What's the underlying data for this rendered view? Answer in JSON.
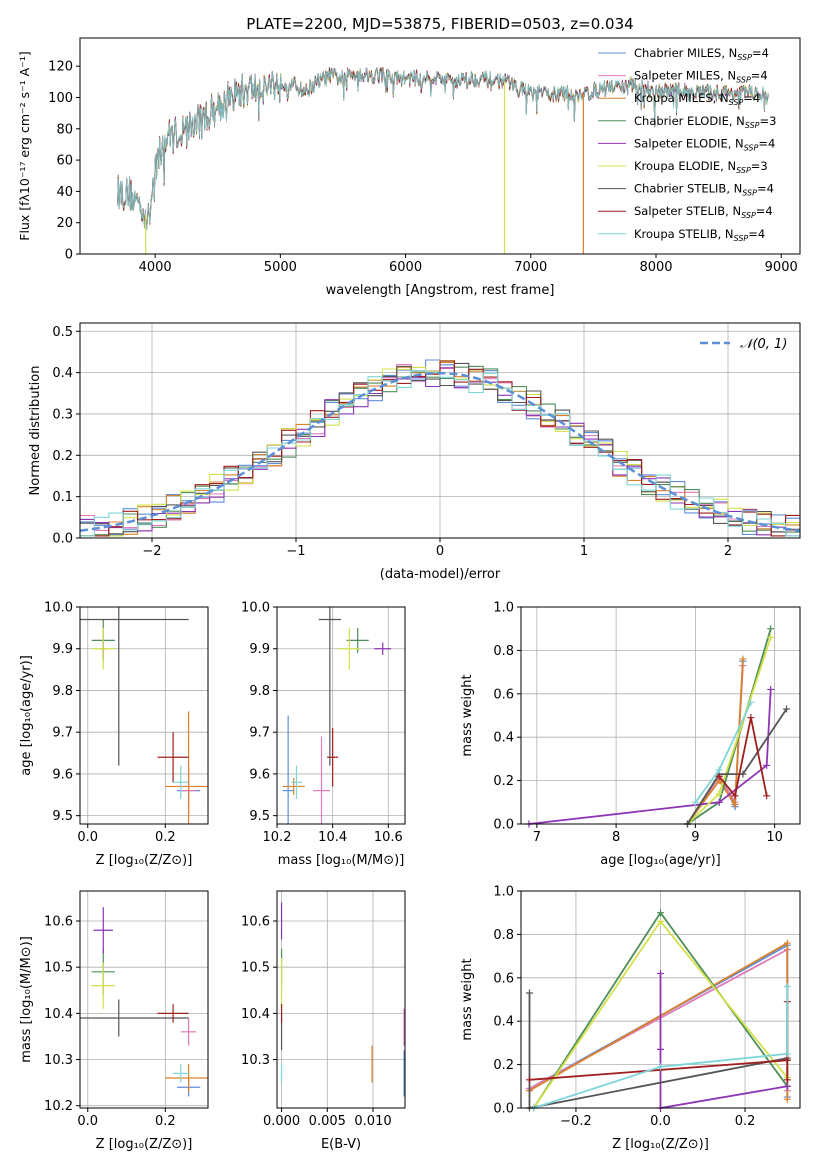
{
  "title": "PLATE=2200, MJD=53875, FIBERID=0503, z=0.034",
  "colors": {
    "chabrier_miles": "#5f8fd9",
    "salpeter_miles": "#e07ab8",
    "kroupa_miles": "#d9822b",
    "chabrier_elodie": "#4f8f5a",
    "salpeter_elodie": "#8e35b5",
    "kroupa_elodie": "#d4e04a",
    "chabrier_stelib": "#555555",
    "salpeter_stelib": "#a01e1e",
    "kroupa_stelib": "#7fd6d9",
    "gaussian": "#5b8fd6"
  },
  "chart_data": [
    {
      "id": "spectrum",
      "type": "line",
      "xlabel": "wavelength [Angstrom, rest frame]",
      "ylabel": "Flux [fλ10⁻¹⁷ erg cm⁻² s⁻¹ A⁻¹]",
      "xlim": [
        3400,
        9150
      ],
      "ylim": [
        0,
        138
      ],
      "xticks": [
        "4000",
        "5000",
        "6000",
        "7000",
        "8000",
        "9000"
      ],
      "yticks": [
        "0",
        "20",
        "40",
        "60",
        "80",
        "100",
        "120"
      ],
      "legend_position": "top-right",
      "legend": [
        {
          "label": "Chabrier MILES, N",
          "sub": "SSP",
          "tail": "=4",
          "color_key": "chabrier_miles"
        },
        {
          "label": "Salpeter MILES, N",
          "sub": "SSP",
          "tail": "=4",
          "color_key": "salpeter_miles"
        },
        {
          "label": "Kroupa MILES, N",
          "sub": "SSP",
          "tail": "=4",
          "color_key": "kroupa_miles"
        },
        {
          "label": "Chabrier ELODIE, N",
          "sub": "SSP",
          "tail": "=3",
          "color_key": "chabrier_elodie"
        },
        {
          "label": "Salpeter ELODIE, N",
          "sub": "SSP",
          "tail": "=4",
          "color_key": "salpeter_elodie"
        },
        {
          "label": "Kroupa ELODIE, N",
          "sub": "SSP",
          "tail": "=3",
          "color_key": "kroupa_elodie"
        },
        {
          "label": "Chabrier STELIB, N",
          "sub": "SSP",
          "tail": "=4",
          "color_key": "chabrier_stelib"
        },
        {
          "label": "Salpeter STELIB, N",
          "sub": "SSP",
          "tail": "=4",
          "color_key": "salpeter_stelib"
        },
        {
          "label": "Kroupa STELIB, N",
          "sub": "SSP",
          "tail": "=4",
          "color_key": "kroupa_stelib"
        }
      ],
      "continuum": {
        "x": [
          3700,
          3800,
          3900,
          3950,
          4000,
          4100,
          4200,
          4300,
          4400,
          4500,
          4600,
          4700,
          4800,
          4900,
          5000,
          5100,
          5200,
          5300,
          5400,
          5500,
          5600,
          5700,
          5800,
          5900,
          6000,
          6200,
          6400,
          6600,
          6800,
          7000,
          7200,
          7400,
          7600,
          7800,
          8000,
          8200,
          8400,
          8600,
          8800,
          8900
        ],
        "y": [
          40,
          38,
          30,
          20,
          58,
          75,
          78,
          82,
          88,
          95,
          100,
          104,
          106,
          108,
          110,
          108,
          104,
          110,
          114,
          112,
          116,
          114,
          115,
          112,
          112,
          113,
          111,
          112,
          110,
          103,
          102,
          102,
          106,
          108,
          104,
          104,
          103,
          103,
          103,
          100
        ]
      },
      "spike_lines": [
        {
          "x": 3925,
          "color_key": "kroupa_elodie"
        },
        {
          "x": 6790,
          "color_key": "kroupa_elodie"
        },
        {
          "x": 7420,
          "color_key": "kroupa_miles"
        }
      ]
    },
    {
      "id": "residuals",
      "type": "histogram",
      "xlabel": "(data-model)/error",
      "ylabel": "Normed distribution",
      "xlim": [
        -2.5,
        2.5
      ],
      "ylim": [
        0,
        0.52
      ],
      "xticks": [
        "−2",
        "−1",
        "0",
        "1",
        "2"
      ],
      "yticks": [
        "0.0",
        "0.1",
        "0.2",
        "0.3",
        "0.4",
        "0.5"
      ],
      "bin_width": 0.1,
      "legend_position": "top-right",
      "gaussian_label": "𝒩(0, 1)",
      "series_color_keys": [
        "chabrier_miles",
        "salpeter_miles",
        "kroupa_miles",
        "chabrier_elodie",
        "salpeter_elodie",
        "kroupa_elodie",
        "chabrier_stelib",
        "salpeter_stelib",
        "kroupa_stelib"
      ]
    },
    {
      "id": "age-vs-z",
      "type": "errorbar",
      "xlabel": "Z [log₁₀(Z/Z⊙)]",
      "ylabel": "age  [log₁₀(age/yr)]",
      "xlim": [
        -0.02,
        0.31
      ],
      "ylim": [
        9.48,
        10.0
      ],
      "xticks": [
        {
          "v": 0.0,
          "t": "0.0"
        },
        {
          "v": 0.2,
          "t": "0.2"
        }
      ],
      "yticks": [
        {
          "v": 9.5,
          "t": "9.5"
        },
        {
          "v": 9.6,
          "t": "9.6"
        },
        {
          "v": 9.7,
          "t": "9.7"
        },
        {
          "v": 9.8,
          "t": "9.8"
        },
        {
          "v": 9.9,
          "t": "9.9"
        },
        {
          "v": 10.0,
          "t": "10.0"
        }
      ],
      "points": [
        {
          "c": "chabrier_miles",
          "x": 0.26,
          "y": 9.56,
          "xe": 0.03,
          "ye": 0.03
        },
        {
          "c": "salpeter_miles",
          "x": 0.26,
          "y": 9.56,
          "xe": 0.02,
          "ye": 0.06
        },
        {
          "c": "kroupa_miles",
          "x": 0.26,
          "y": 9.57,
          "xe": 0.06,
          "ye": 0.18
        },
        {
          "c": "chabrier_elodie",
          "x": 0.04,
          "y": 9.92,
          "xe": 0.03,
          "ye": 0.05
        },
        {
          "c": "salpeter_elodie",
          "x": 0.04,
          "y": 9.9,
          "xe": 0.005,
          "ye": 0.02
        },
        {
          "c": "kroupa_elodie",
          "x": 0.04,
          "y": 9.9,
          "xe": 0.03,
          "ye": 0.05
        },
        {
          "c": "chabrier_stelib",
          "x": 0.08,
          "y": 9.97,
          "xe": 0.18,
          "ye": 0.35
        },
        {
          "c": "salpeter_stelib",
          "x": 0.22,
          "y": 9.64,
          "xe": 0.04,
          "ye": 0.06
        },
        {
          "c": "kroupa_stelib",
          "x": 0.24,
          "y": 9.58,
          "xe": 0.02,
          "ye": 0.04
        }
      ]
    },
    {
      "id": "age-vs-mass",
      "type": "errorbar",
      "xlabel": "mass [log₁₀(M/M⊙)]",
      "ylabel": "",
      "xlim": [
        10.2,
        10.66
      ],
      "ylim": [
        9.48,
        10.0
      ],
      "xticks": [
        {
          "v": 10.2,
          "t": "10.2"
        },
        {
          "v": 10.4,
          "t": "10.4"
        },
        {
          "v": 10.6,
          "t": "10.6"
        }
      ],
      "yticks": [
        {
          "v": 9.5,
          "t": "9.5"
        },
        {
          "v": 9.6,
          "t": "9.6"
        },
        {
          "v": 9.7,
          "t": "9.7"
        },
        {
          "v": 9.8,
          "t": "9.8"
        },
        {
          "v": 9.9,
          "t": "9.9"
        },
        {
          "v": 10.0,
          "t": "10.0"
        }
      ],
      "points": [
        {
          "c": "chabrier_miles",
          "x": 10.24,
          "y": 9.56,
          "xe": 0.02,
          "ye": 0.18
        },
        {
          "c": "salpeter_miles",
          "x": 10.36,
          "y": 9.56,
          "xe": 0.03,
          "ye": 0.13
        },
        {
          "c": "kroupa_miles",
          "x": 10.26,
          "y": 9.57,
          "xe": 0.04,
          "ye": 0.02
        },
        {
          "c": "chabrier_elodie",
          "x": 10.49,
          "y": 9.92,
          "xe": 0.04,
          "ye": 0.03
        },
        {
          "c": "salpeter_elodie",
          "x": 10.58,
          "y": 9.9,
          "xe": 0.03,
          "ye": 0.015
        },
        {
          "c": "kroupa_elodie",
          "x": 10.46,
          "y": 9.9,
          "xe": 0.04,
          "ye": 0.05
        },
        {
          "c": "chabrier_stelib",
          "x": 10.39,
          "y": 9.97,
          "xe": 0.04,
          "ye": 0.35
        },
        {
          "c": "salpeter_stelib",
          "x": 10.4,
          "y": 9.64,
          "xe": 0.02,
          "ye": 0.07
        },
        {
          "c": "kroupa_stelib",
          "x": 10.27,
          "y": 9.58,
          "xe": 0.02,
          "ye": 0.04
        }
      ]
    },
    {
      "id": "weight-vs-age",
      "type": "line",
      "xlabel": "age  [log₁₀(age/yr)]",
      "ylabel": "mass weight",
      "xlim": [
        6.8,
        10.32
      ],
      "ylim": [
        0,
        1.0
      ],
      "xticks": [
        {
          "v": 7,
          "t": "7"
        },
        {
          "v": 8,
          "t": "8"
        },
        {
          "v": 9,
          "t": "9"
        },
        {
          "v": 10,
          "t": "10"
        }
      ],
      "yticks": [
        {
          "v": 0,
          "t": "0.0"
        },
        {
          "v": 0.2,
          "t": "0.2"
        },
        {
          "v": 0.4,
          "t": "0.4"
        },
        {
          "v": 0.6,
          "t": "0.6"
        },
        {
          "v": 0.8,
          "t": "0.8"
        },
        {
          "v": 1.0,
          "t": "1.0"
        }
      ],
      "series": [
        {
          "c": "chabrier_miles",
          "x": [
            8.9,
            9.3,
            9.5,
            9.6
          ],
          "y": [
            0.0,
            0.22,
            0.08,
            0.75
          ]
        },
        {
          "c": "salpeter_miles",
          "x": [
            8.9,
            9.3,
            9.5,
            9.6
          ],
          "y": [
            0.0,
            0.22,
            0.1,
            0.73
          ]
        },
        {
          "c": "kroupa_miles",
          "x": [
            8.9,
            9.3,
            9.5,
            9.6
          ],
          "y": [
            0.0,
            0.2,
            0.09,
            0.76
          ]
        },
        {
          "c": "chabrier_elodie",
          "x": [
            8.9,
            9.3,
            9.95
          ],
          "y": [
            0.0,
            0.1,
            0.9
          ]
        },
        {
          "c": "salpeter_elodie",
          "x": [
            6.9,
            9.3,
            9.9,
            9.95
          ],
          "y": [
            0.0,
            0.1,
            0.27,
            0.62
          ]
        },
        {
          "c": "kroupa_elodie",
          "x": [
            8.9,
            9.3,
            9.95
          ],
          "y": [
            0.0,
            0.14,
            0.86
          ]
        },
        {
          "c": "chabrier_stelib",
          "x": [
            8.9,
            9.3,
            9.6,
            10.15
          ],
          "y": [
            0.0,
            0.23,
            0.23,
            0.53
          ]
        },
        {
          "c": "salpeter_stelib",
          "x": [
            9.3,
            9.5,
            9.7,
            9.9
          ],
          "y": [
            0.22,
            0.13,
            0.49,
            0.13
          ]
        },
        {
          "c": "kroupa_stelib",
          "x": [
            9.0,
            9.3,
            9.7
          ],
          "y": [
            0.1,
            0.25,
            0.56
          ]
        }
      ]
    },
    {
      "id": "mass-vs-z",
      "type": "errorbar",
      "xlabel": "Z [log₁₀(Z/Z⊙)]",
      "ylabel": "mass [log₁₀(M/M⊙)]",
      "xlim": [
        -0.02,
        0.31
      ],
      "ylim": [
        10.195,
        10.665
      ],
      "xticks": [
        {
          "v": 0.0,
          "t": "0.0"
        },
        {
          "v": 0.2,
          "t": "0.2"
        }
      ],
      "yticks": [
        {
          "v": 10.2,
          "t": "10.2"
        },
        {
          "v": 10.3,
          "t": "10.3"
        },
        {
          "v": 10.4,
          "t": "10.4"
        },
        {
          "v": 10.5,
          "t": "10.5"
        },
        {
          "v": 10.6,
          "t": "10.6"
        }
      ],
      "points": [
        {
          "c": "chabrier_miles",
          "x": 0.26,
          "y": 10.24,
          "xe": 0.03,
          "ye": 0.02
        },
        {
          "c": "salpeter_miles",
          "x": 0.26,
          "y": 10.36,
          "xe": 0.02,
          "ye": 0.03
        },
        {
          "c": "kroupa_miles",
          "x": 0.26,
          "y": 10.26,
          "xe": 0.06,
          "ye": 0.03
        },
        {
          "c": "chabrier_elodie",
          "x": 0.04,
          "y": 10.49,
          "xe": 0.03,
          "ye": 0.05
        },
        {
          "c": "salpeter_elodie",
          "x": 0.04,
          "y": 10.58,
          "xe": 0.025,
          "ye": 0.05
        },
        {
          "c": "kroupa_elodie",
          "x": 0.04,
          "y": 10.46,
          "xe": 0.03,
          "ye": 0.05
        },
        {
          "c": "chabrier_stelib",
          "x": 0.08,
          "y": 10.39,
          "xe": 0.18,
          "ye": 0.04
        },
        {
          "c": "salpeter_stelib",
          "x": 0.22,
          "y": 10.4,
          "xe": 0.04,
          "ye": 0.02
        },
        {
          "c": "kroupa_stelib",
          "x": 0.24,
          "y": 10.27,
          "xe": 0.02,
          "ye": 0.02
        }
      ]
    },
    {
      "id": "mass-vs-ebv",
      "type": "errorbar",
      "xlabel": "E(B-V)",
      "ylabel": "",
      "xlim": [
        -0.0005,
        0.0135
      ],
      "ylim": [
        10.195,
        10.665
      ],
      "xticks": [
        {
          "v": 0.0,
          "t": "0.000"
        },
        {
          "v": 0.005,
          "t": "0.005"
        },
        {
          "v": 0.01,
          "t": "0.010"
        }
      ],
      "yticks": [
        {
          "v": 10.3,
          "t": "10.3"
        },
        {
          "v": 10.4,
          "t": "10.4"
        },
        {
          "v": 10.5,
          "t": "10.5"
        },
        {
          "v": 10.6,
          "t": "10.6"
        }
      ],
      "points": [
        {
          "c": "chabrier_miles",
          "x": 0.0134,
          "y": 10.27,
          "xe": 0,
          "ye": 0.05
        },
        {
          "c": "salpeter_miles",
          "x": 0.0134,
          "y": 10.37,
          "xe": 0,
          "ye": 0.04
        },
        {
          "c": "kroupa_miles",
          "x": 0.0099,
          "y": 10.29,
          "xe": 0,
          "ye": 0.04
        },
        {
          "c": "chabrier_elodie",
          "x": 0.0,
          "y": 10.5,
          "xe": 0,
          "ye": 0.04
        },
        {
          "c": "salpeter_elodie",
          "x": 0.0,
          "y": 10.6,
          "xe": 0,
          "ye": 0.04
        },
        {
          "c": "kroupa_elodie",
          "x": 0.0,
          "y": 10.46,
          "xe": 0,
          "ye": 0.06
        },
        {
          "c": "chabrier_stelib",
          "x": 0.0,
          "y": 10.36,
          "xe": 0,
          "ye": 0.04
        },
        {
          "c": "salpeter_stelib",
          "x": 0.0,
          "y": 10.4,
          "xe": 0,
          "ye": 0.02
        },
        {
          "c": "kroupa_stelib",
          "x": 0.0,
          "y": 10.27,
          "xe": 0,
          "ye": 0.02
        }
      ]
    },
    {
      "id": "weight-vs-z",
      "type": "line",
      "xlabel": "Z [log₁₀(Z/Z⊙)]",
      "ylabel": "mass weight",
      "xlim": [
        -0.33,
        0.33
      ],
      "ylim": [
        0,
        1.0
      ],
      "xticks": [
        {
          "v": -0.2,
          "t": "−0.2"
        },
        {
          "v": 0.0,
          "t": "0.0"
        },
        {
          "v": 0.2,
          "t": "0.2"
        }
      ],
      "yticks": [
        {
          "v": 0,
          "t": "0.0"
        },
        {
          "v": 0.2,
          "t": "0.2"
        },
        {
          "v": 0.4,
          "t": "0.4"
        },
        {
          "v": 0.6,
          "t": "0.6"
        },
        {
          "v": 0.8,
          "t": "0.8"
        },
        {
          "v": 1.0,
          "t": "1.0"
        }
      ],
      "series": [
        {
          "c": "chabrier_miles",
          "x": [
            -0.31,
            0.3,
            0.3
          ],
          "y": [
            0.09,
            0.75,
            0.05
          ]
        },
        {
          "c": "salpeter_miles",
          "x": [
            -0.31,
            0.3,
            0.3
          ],
          "y": [
            0.09,
            0.73,
            0.08
          ]
        },
        {
          "c": "kroupa_miles",
          "x": [
            -0.31,
            0.3,
            0.3
          ],
          "y": [
            0.08,
            0.76,
            0.04
          ]
        },
        {
          "c": "chabrier_elodie",
          "x": [
            -0.3,
            0.0,
            0.3
          ],
          "y": [
            0.0,
            0.9,
            0.1
          ]
        },
        {
          "c": "salpeter_elodie",
          "x": [
            0.0,
            0.0,
            0.0,
            0.3
          ],
          "y": [
            0.62,
            0.27,
            0.0,
            0.1
          ]
        },
        {
          "c": "kroupa_elodie",
          "x": [
            -0.3,
            0.0,
            0.3
          ],
          "y": [
            0.0,
            0.86,
            0.14
          ]
        },
        {
          "c": "chabrier_stelib",
          "x": [
            -0.31,
            -0.31,
            0.3,
            0.3
          ],
          "y": [
            0.53,
            0.0,
            0.23,
            0.22
          ]
        },
        {
          "c": "salpeter_stelib",
          "x": [
            -0.31,
            0.3,
            0.3,
            0.3
          ],
          "y": [
            0.13,
            0.22,
            0.49,
            0.13
          ]
        },
        {
          "c": "kroupa_stelib",
          "x": [
            -0.3,
            0.0,
            0.3,
            0.3
          ],
          "y": [
            0.0,
            0.19,
            0.25,
            0.56
          ]
        }
      ]
    }
  ]
}
